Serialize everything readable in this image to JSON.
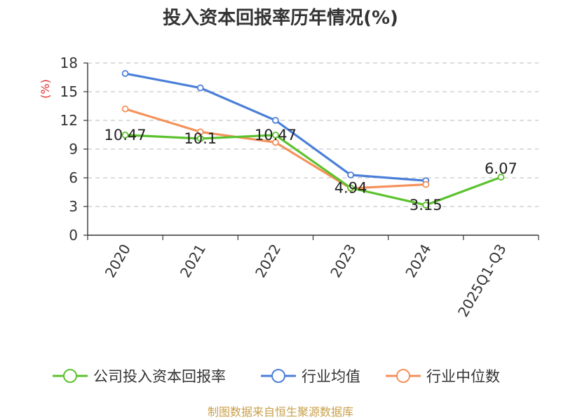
{
  "chart_data": {
    "type": "line",
    "title": "投入资本回报率历年情况(%)",
    "ylabel": "(%)",
    "xlabel": "",
    "categories": [
      "2020",
      "2021",
      "2022",
      "2023",
      "2024",
      "2025Q1-Q3"
    ],
    "ylim": [
      0,
      18
    ],
    "yticks": [
      0,
      3,
      6,
      9,
      12,
      15,
      18
    ],
    "grid": true,
    "legend_position": "bottom",
    "series": [
      {
        "name": "公司投入资本回报率",
        "color": "#5cc22e",
        "values": [
          10.47,
          10.1,
          10.47,
          4.94,
          3.15,
          6.07
        ],
        "labels": [
          "10.47",
          "10.1",
          "10.47",
          "4.94",
          "3.15",
          "6.07"
        ]
      },
      {
        "name": "行业均值",
        "color": "#4a7fd8",
        "values": [
          16.9,
          15.4,
          12.0,
          6.3,
          5.7,
          null
        ]
      },
      {
        "name": "行业中位数",
        "color": "#f5915a",
        "values": [
          13.2,
          10.8,
          9.7,
          4.9,
          5.3,
          null
        ]
      }
    ],
    "source": "制图数据来自恒生聚源数据库"
  }
}
